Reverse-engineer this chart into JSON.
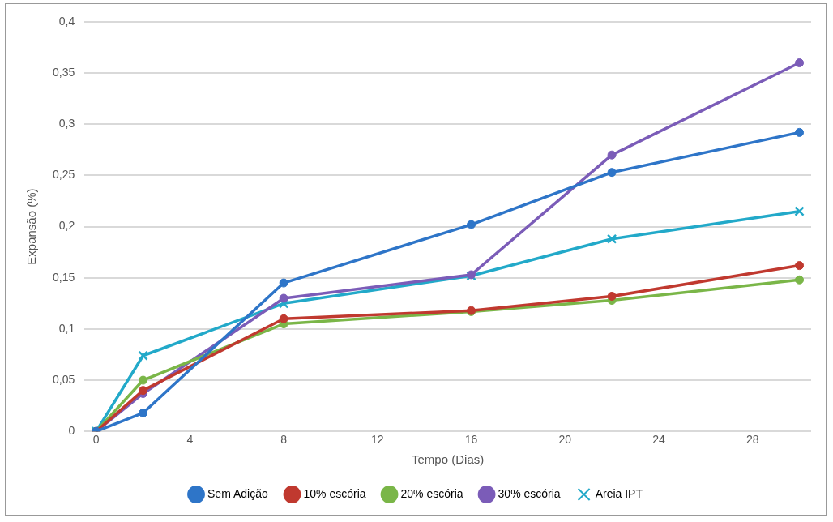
{
  "chart_data": {
    "type": "line",
    "xlabel": "Tempo (Dias)",
    "ylabel": "Expansão (%)",
    "x": [
      0,
      2,
      8,
      16,
      22,
      30
    ],
    "series": [
      {
        "name": "Sem Adição",
        "color": "#2e75c8",
        "values": [
          0,
          0.018,
          0.145,
          0.202,
          0.253,
          0.292
        ]
      },
      {
        "name": "10% escória",
        "color": "#c0392f",
        "values": [
          0,
          0.04,
          0.11,
          0.118,
          0.132,
          0.162
        ]
      },
      {
        "name": "20% escória",
        "color": "#7ab648",
        "values": [
          0,
          0.05,
          0.105,
          0.117,
          0.128,
          0.148
        ]
      },
      {
        "name": "30% escória",
        "color": "#7b5cb8",
        "values": [
          0,
          0.037,
          0.13,
          0.153,
          0.27,
          0.36
        ]
      },
      {
        "name": "Areia IPT",
        "color": "#22a9c9",
        "marker": "cross",
        "values": [
          0,
          0.074,
          0.125,
          0.152,
          0.188,
          0.215
        ]
      }
    ],
    "xlim": [
      -0.5,
      30.5
    ],
    "xticks": [
      0,
      4,
      8,
      12,
      16,
      20,
      24,
      28
    ],
    "ylim": [
      0,
      0.4
    ],
    "yticks": [
      {
        "value": 0,
        "label": "0"
      },
      {
        "value": 0.05,
        "label": "0,05"
      },
      {
        "value": 0.1,
        "label": "0,1"
      },
      {
        "value": 0.15,
        "label": "0,15"
      },
      {
        "value": 0.2,
        "label": "0,2"
      },
      {
        "value": 0.25,
        "label": "0,25"
      },
      {
        "value": 0.3,
        "label": "0,3"
      },
      {
        "value": 0.35,
        "label": "0,35"
      },
      {
        "value": 0.4,
        "label": "0,4"
      }
    ],
    "grid": "y",
    "legend": "bottom",
    "marker": "circle",
    "line_style": "solid"
  }
}
